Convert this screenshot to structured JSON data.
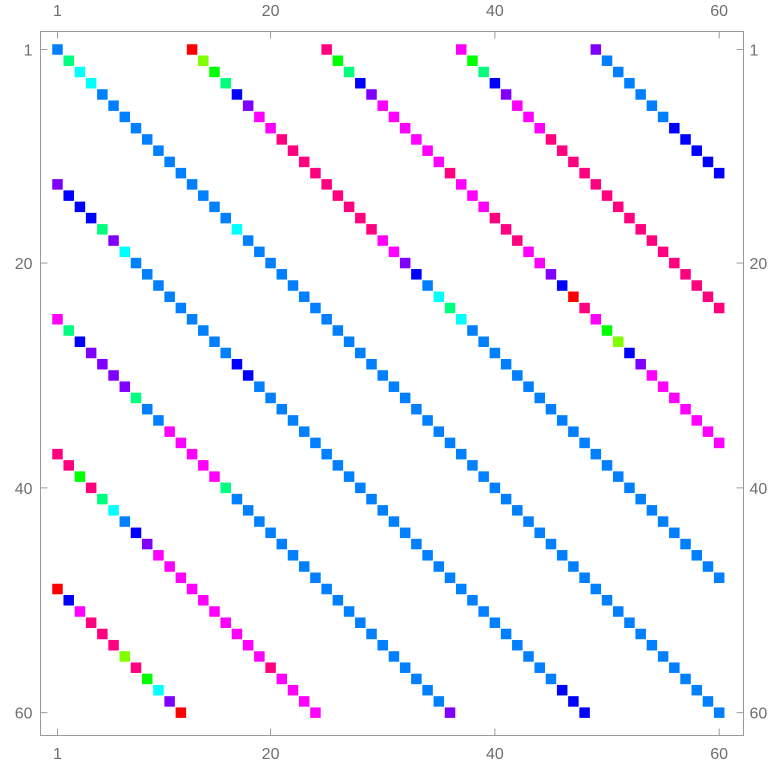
{
  "chart_data": {
    "type": "heatmap",
    "rows": 60,
    "cols": 60,
    "x_ticks": [
      "1",
      "20",
      "40",
      "60"
    ],
    "y_ticks": [
      "1",
      "20",
      "40",
      "60"
    ],
    "tick_values": [
      1,
      20,
      40,
      60
    ],
    "row_origin": "top",
    "grid": false,
    "color_scale": [
      "#ff0000",
      "#7fff00",
      "#00ff00",
      "#00ff7f",
      "#00ffff",
      "#007fff",
      "#0000ff",
      "#7f00ff",
      "#ff00ff",
      "#ff007f"
    ],
    "diagonals": [
      {
        "offset": 0,
        "colors": [
          5,
          3,
          4,
          4,
          5,
          5,
          5,
          5,
          5,
          5,
          5,
          5,
          5,
          5,
          5,
          5,
          4,
          5,
          5,
          5,
          5,
          5,
          5,
          5,
          5,
          5,
          5,
          5,
          5,
          5,
          5,
          5,
          5,
          5,
          5,
          5,
          5,
          5,
          5,
          5,
          5,
          5,
          5,
          5,
          5,
          5,
          5,
          5,
          5,
          5,
          5,
          5,
          5,
          5,
          5,
          5,
          5,
          5,
          5,
          5
        ]
      },
      {
        "offset": 12,
        "colors": [
          0,
          1,
          2,
          3,
          6,
          7,
          8,
          8,
          9,
          9,
          9,
          9,
          9,
          9,
          9,
          9,
          9,
          8,
          8,
          7,
          6,
          5,
          4,
          3,
          4,
          5,
          5,
          5,
          5,
          5,
          5,
          5,
          5,
          5,
          5,
          5,
          5,
          5,
          5,
          5,
          5,
          5,
          5,
          5,
          5,
          5,
          5,
          5
        ]
      },
      {
        "offset": 24,
        "colors": [
          9,
          2,
          3,
          6,
          7,
          8,
          8,
          8,
          8,
          8,
          8,
          9,
          8,
          8,
          8,
          9,
          9,
          9,
          8,
          8,
          7,
          6,
          0,
          9,
          8,
          2,
          1,
          6,
          7,
          8,
          8,
          8,
          8,
          8,
          8,
          8
        ]
      },
      {
        "offset": 36,
        "colors": [
          8,
          2,
          3,
          6,
          7,
          8,
          8,
          8,
          9,
          9,
          9,
          9,
          9,
          9,
          9,
          9,
          9,
          9,
          9,
          9,
          9,
          9,
          9,
          9
        ]
      },
      {
        "offset": 48,
        "colors": [
          7,
          5,
          5,
          5,
          5,
          5,
          5,
          6,
          6,
          6,
          6,
          6
        ]
      },
      {
        "offset": -12,
        "colors": [
          7,
          6,
          6,
          6,
          3,
          7,
          4,
          5,
          5,
          5,
          5,
          5,
          5,
          5,
          5,
          5,
          6,
          6,
          5,
          5,
          5,
          5,
          5,
          5,
          5,
          5,
          5,
          5,
          5,
          5,
          5,
          5,
          5,
          5,
          5,
          5,
          5,
          5,
          5,
          5,
          5,
          5,
          5,
          5,
          5,
          6,
          6,
          6
        ]
      },
      {
        "offset": -24,
        "colors": [
          8,
          3,
          6,
          7,
          7,
          7,
          7,
          3,
          5,
          5,
          8,
          8,
          8,
          8,
          8,
          3,
          5,
          5,
          5,
          5,
          5,
          5,
          5,
          5,
          5,
          5,
          5,
          5,
          5,
          5,
          5,
          5,
          5,
          5,
          5,
          7
        ]
      },
      {
        "offset": -36,
        "colors": [
          9,
          9,
          2,
          9,
          3,
          4,
          5,
          6,
          7,
          8,
          8,
          8,
          8,
          8,
          8,
          8,
          8,
          8,
          8,
          9,
          8,
          8,
          8,
          8
        ]
      },
      {
        "offset": -48,
        "colors": [
          0,
          6,
          8,
          9,
          9,
          9,
          1,
          9,
          2,
          4,
          7,
          0
        ]
      }
    ]
  }
}
